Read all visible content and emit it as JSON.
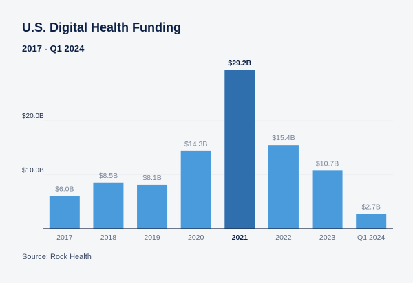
{
  "title": "U.S. Digital Health Funding",
  "subtitle": "2017 - Q1 2024",
  "source": "Source: Rock Health",
  "colors": {
    "bar": "#4a9bdc",
    "bar_highlight": "#2f6fad",
    "grid": "#dfe3e8",
    "axis": "#1d2b45"
  },
  "chart_data": {
    "type": "bar",
    "title": "U.S. Digital Health Funding",
    "subtitle": "2017 - Q1 2024",
    "xlabel": "",
    "ylabel": "",
    "categories": [
      "2017",
      "2018",
      "2019",
      "2020",
      "2021",
      "2022",
      "2023",
      "Q1 2024"
    ],
    "values": [
      6.0,
      8.5,
      8.1,
      14.3,
      29.2,
      15.4,
      10.7,
      2.7
    ],
    "value_labels": [
      "$6.0B",
      "$8.5B",
      "$8.1B",
      "$14.3B",
      "$29.2B",
      "$15.4B",
      "$10.7B",
      "$2.7B"
    ],
    "highlight_index": 4,
    "ylim": [
      0,
      29.2
    ],
    "yticks": [
      10,
      20
    ],
    "ytick_labels": [
      "$10.0B",
      "$20.0B"
    ],
    "grid": true,
    "legend": "none"
  }
}
